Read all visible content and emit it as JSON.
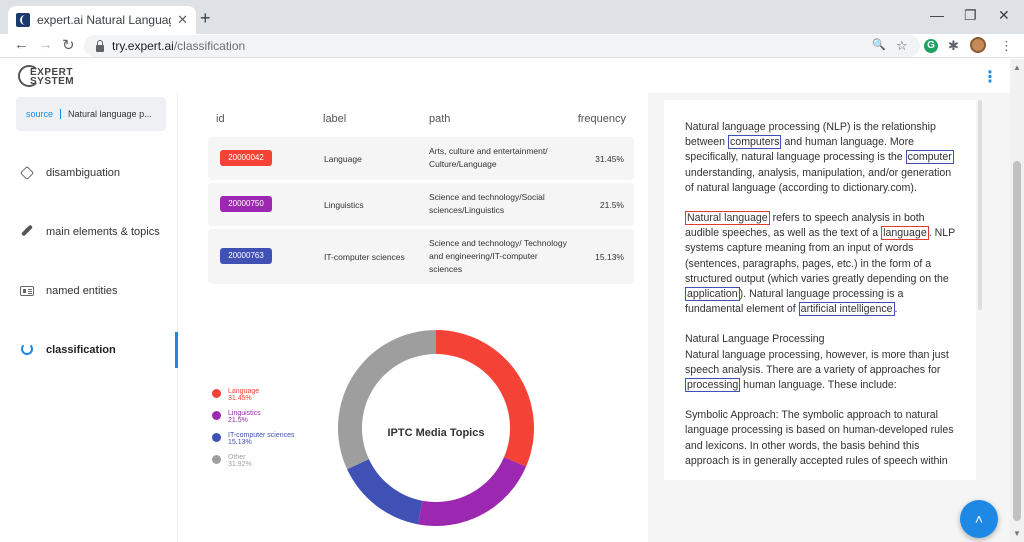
{
  "browser": {
    "tab_title": "expert.ai Natural Language API D",
    "tab_close": "✕",
    "new_tab": "+",
    "url_host": "try.expert.ai",
    "url_path": "/classification",
    "controls": {
      "minimize": "—",
      "restore": "❐",
      "close": "✕"
    },
    "nav": {
      "back": "←",
      "forward": "→",
      "reload": "↻"
    },
    "toolbar_icons": {
      "zoom": "🔍",
      "star": "☆",
      "ext": "G",
      "puzzle": "✱",
      "menu": "⋮"
    }
  },
  "logo": {
    "line1": "EXPERT",
    "line2": "SYSTEM"
  },
  "header_menu": "⋮",
  "sidebar": {
    "source_label": "source",
    "source_value": "Natural language p...",
    "items": [
      {
        "label": "disambiguation",
        "icon": "tag-icon",
        "active": false
      },
      {
        "label": "main elements & topics",
        "icon": "brush-icon",
        "active": false
      },
      {
        "label": "named entities",
        "icon": "id-card-icon",
        "active": false
      },
      {
        "label": "classification",
        "icon": "ring-icon",
        "active": true
      }
    ]
  },
  "table": {
    "headers": {
      "id": "id",
      "label": "label",
      "path": "path",
      "frequency": "frequency"
    },
    "rows": [
      {
        "id": "20000042",
        "label": "Language",
        "path": "Arts, culture and entertainment/ Culture/Language",
        "frequency": "31.45%",
        "color": "#f44336"
      },
      {
        "id": "20000750",
        "label": "Linguistics",
        "path": "Science and technology/Social sciences/Linguistics",
        "frequency": "21.5%",
        "color": "#9c27b0"
      },
      {
        "id": "20000763",
        "label": "IT-computer sciences",
        "path": "Science and technology/ Technology and engineering/IT-computer sciences",
        "frequency": "15.13%",
        "color": "#3f51b5"
      }
    ]
  },
  "chart_data": {
    "type": "pie",
    "title": "IPTC Media Topics",
    "legend_position": "left",
    "categories": [
      "Language",
      "Linguistics",
      "IT-computer sciences",
      "Other"
    ],
    "values": [
      31.45,
      21.5,
      15.13,
      31.92
    ],
    "value_labels": [
      "31.45%",
      "21.5%",
      "15.13%",
      "31.92%"
    ],
    "colors": [
      "#f44336",
      "#9c27b0",
      "#3f51b5",
      "#9e9e9e"
    ]
  },
  "text": {
    "p1": [
      "Natural language processing (NLP) is the relationship between ",
      "computers",
      " and human language. More specifically, natural language processing is the ",
      "computer",
      " understanding, analysis, manipulation, and/or generation of natural language (according to dictionary.com)."
    ],
    "p2": [
      "Natural language",
      " refers to speech analysis in both audible speeches, as well as the text of a ",
      "language",
      ". NLP systems capture meaning from an input of words (sentences, paragraphs, pages, etc.) in the form of a structured output (which varies greatly depending on the ",
      "application",
      "). Natural language processing is a fundamental element of ",
      "artificial intelligence",
      "."
    ],
    "p3_heading": "Natural Language Processing",
    "p3": [
      "Natural language processing, however, is more than just speech analysis. There are a variety of approaches for ",
      "processing",
      " human language. These include:"
    ],
    "p4": "Symbolic Approach: The symbolic approach to natural language processing is based on human-developed rules and lexicons. In other words, the basis behind this approach is in generally accepted rules of speech within"
  },
  "fab_icon": "˄"
}
